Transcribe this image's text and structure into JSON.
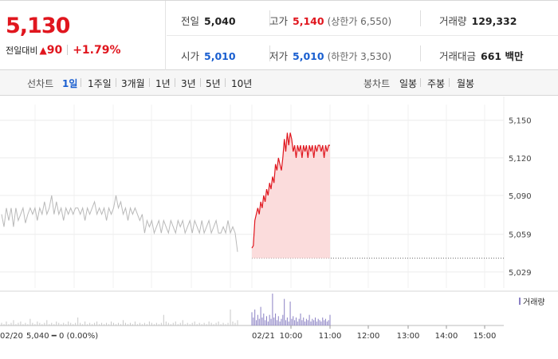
{
  "quote": {
    "price": "5,130",
    "change_label": "전일대비",
    "change_amount": "90",
    "change_percent": "+1.79%",
    "prev_close_label": "전일",
    "prev_close": "5,040",
    "open_label": "시가",
    "open": "5,010",
    "high_label": "고가",
    "high": "5,140",
    "upper_limit": "(상한가 6,550)",
    "low_label": "저가",
    "low": "5,010",
    "lower_limit": "(하한가 3,530)",
    "volume_label": "거래량",
    "volume": "129,332",
    "value_label": "거래대금",
    "value": "661 백만",
    "colors": {
      "up": "#e0161e",
      "down": "#1a5fd0"
    }
  },
  "periods": {
    "line_label": "선차트",
    "line_options": [
      "1일",
      "1주일",
      "3개월",
      "1년",
      "3년",
      "5년",
      "10년"
    ],
    "active": "1일",
    "candle_label": "봉차트",
    "candle_options": [
      "일봉",
      "주봉",
      "월봉"
    ]
  },
  "chart_data": {
    "type": "line",
    "ylim": [
      5020,
      5160
    ],
    "y_ticks": [
      5150,
      5120,
      5090,
      5059,
      5029
    ],
    "prev_close_value": 5040,
    "time_ticks": [
      "10:00",
      "11:00",
      "12:00",
      "13:00",
      "14:00",
      "15:00"
    ],
    "prev_day_label": "02/20",
    "prev_day_summary": "5,040 ━ 0 (0.00%)",
    "today_label": "02/21",
    "volume_legend": "거래량",
    "series": [
      {
        "name": "02/20",
        "values": [
          5075,
          5065,
          5080,
          5070,
          5080,
          5065,
          5080,
          5070,
          5075,
          5080,
          5068,
          5075,
          5080,
          5075,
          5080,
          5070,
          5080,
          5075,
          5085,
          5075,
          5080,
          5090,
          5075,
          5085,
          5075,
          5080,
          5070,
          5080,
          5075,
          5080,
          5075,
          5080,
          5080,
          5075,
          5080,
          5070,
          5080,
          5075,
          5080,
          5085,
          5075,
          5080,
          5075,
          5080,
          5070,
          5080,
          5075,
          5080,
          5090,
          5080,
          5085,
          5075,
          5080,
          5070,
          5080,
          5075,
          5080,
          5075,
          5070,
          5075,
          5060,
          5070,
          5065,
          5070,
          5060,
          5065,
          5070,
          5060,
          5070,
          5065,
          5060,
          5070,
          5065,
          5060,
          5070,
          5065,
          5070,
          5060,
          5065,
          5070,
          5060,
          5070,
          5065,
          5060,
          5070,
          5060,
          5065,
          5070,
          5060,
          5065,
          5070,
          5060,
          5060,
          5065,
          5060,
          5070,
          5060,
          5065,
          5060,
          5045
        ]
      },
      {
        "name": "02/21",
        "values": [
          5048,
          5050,
          5070,
          5075,
          5080,
          5075,
          5085,
          5080,
          5090,
          5085,
          5095,
          5090,
          5100,
          5095,
          5105,
          5100,
          5115,
          5110,
          5120,
          5115,
          5110,
          5120,
          5135,
          5125,
          5140,
          5130,
          5140,
          5135,
          5125,
          5130,
          5120,
          5130,
          5125,
          5130,
          5120,
          5130,
          5125,
          5130,
          5120,
          5130,
          5125,
          5130,
          5120,
          5130,
          5125,
          5130,
          5130,
          5125,
          5130,
          5120,
          5130,
          5125,
          5130,
          5130
        ]
      }
    ],
    "volume": {
      "prev_day": [
        2,
        1,
        3,
        1,
        2,
        4,
        1,
        2,
        3,
        1,
        2,
        1,
        5,
        2,
        1,
        3,
        2,
        1,
        2,
        4,
        1,
        2,
        1,
        3,
        2,
        1,
        2,
        1,
        3,
        2,
        1,
        2,
        6,
        2,
        1,
        3,
        1,
        2,
        1,
        2,
        3,
        1,
        2,
        1,
        2,
        1,
        3,
        2,
        1,
        2,
        1,
        4,
        2,
        1,
        2,
        1,
        3,
        1,
        2,
        1,
        2,
        1,
        3,
        2,
        1,
        2,
        1,
        2,
        8,
        3,
        2,
        1,
        2,
        3,
        1,
        2,
        4,
        1,
        2,
        1,
        2,
        3,
        1,
        2,
        1,
        2,
        1,
        3,
        2,
        1,
        2,
        3,
        1,
        2,
        1,
        2,
        12,
        3,
        2,
        4
      ],
      "today": [
        10,
        6,
        12,
        4,
        8,
        5,
        14,
        6,
        9,
        4,
        7,
        3,
        8,
        5,
        24,
        6,
        9,
        4,
        7,
        3,
        5,
        8,
        20,
        4,
        6,
        3,
        18,
        5,
        7,
        4,
        6,
        3,
        5,
        9,
        4,
        6,
        3,
        5,
        4,
        8,
        3,
        5,
        4,
        6,
        3,
        5,
        4,
        3,
        6,
        4,
        5,
        3,
        4,
        8
      ]
    }
  }
}
